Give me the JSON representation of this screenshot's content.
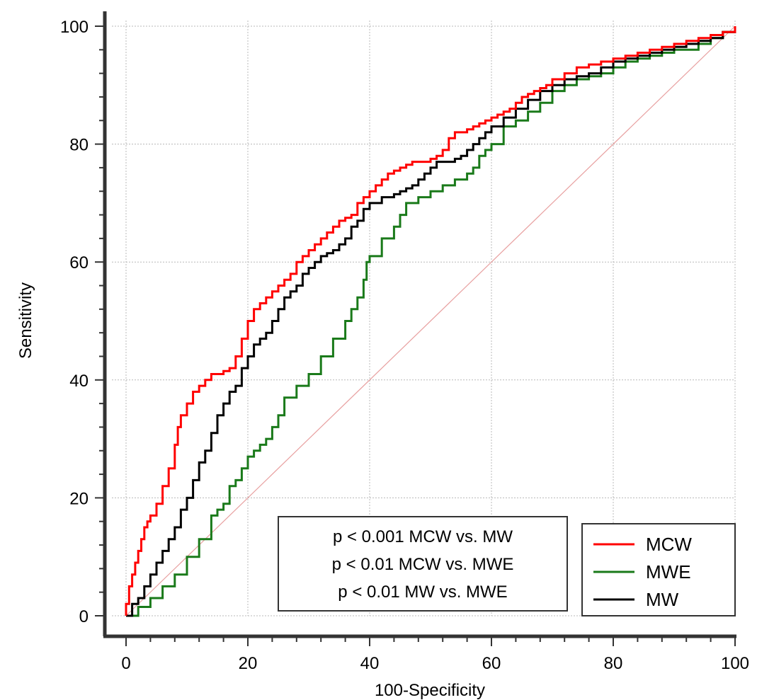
{
  "chart_data": {
    "type": "line",
    "title": "",
    "xlabel": "100-Specificity",
    "ylabel": "Sensitivity",
    "xlim": [
      0,
      100
    ],
    "ylim": [
      0,
      100
    ],
    "xticks": [
      0,
      20,
      40,
      60,
      80,
      100
    ],
    "yticks": [
      0,
      20,
      40,
      60,
      80,
      100
    ],
    "grid": true,
    "legend_position": "bottom-right",
    "annotation": [
      "p < 0.001 MCW vs. MW",
      "p < 0.01 MCW vs. MWE",
      "p < 0.01 MW vs. MWE"
    ],
    "reference_line": {
      "x": [
        0,
        100
      ],
      "y": [
        0,
        100
      ],
      "color": "#e8a0a0"
    },
    "series": [
      {
        "name": "MCW",
        "color": "#ff0000",
        "x": [
          0,
          0,
          0.5,
          1,
          1.5,
          2,
          2.5,
          3,
          3.5,
          4,
          5,
          6,
          7,
          8,
          8.5,
          9,
          10,
          11,
          12,
          13,
          14,
          16,
          17,
          18,
          19,
          20,
          21,
          22,
          23,
          24,
          25,
          26,
          27,
          28,
          29,
          30,
          31,
          32,
          33,
          34,
          35,
          36,
          37,
          38,
          39,
          40,
          41,
          42,
          43,
          44,
          45,
          46,
          47,
          48,
          49,
          50,
          51,
          52,
          53,
          54,
          55,
          56,
          57,
          58,
          59,
          60,
          61,
          62,
          63,
          64,
          65,
          66,
          67,
          68,
          69,
          70,
          72,
          74,
          76,
          78,
          80,
          82,
          84,
          86,
          88,
          90,
          92,
          94,
          96,
          98,
          100
        ],
        "y": [
          0,
          2,
          5,
          7,
          9,
          11,
          13,
          15,
          16,
          17,
          19,
          22,
          25,
          29,
          32,
          34,
          36,
          38,
          39,
          40,
          41,
          41.5,
          42,
          44,
          47,
          50,
          52,
          53,
          54,
          55,
          56,
          57,
          58,
          60,
          61,
          62,
          63,
          64,
          65,
          66,
          67,
          67.5,
          68,
          70,
          71,
          72,
          73,
          74,
          75,
          75.5,
          76,
          76.5,
          77,
          77,
          77,
          77.5,
          78,
          79,
          81,
          82,
          82,
          82.5,
          83,
          83.5,
          84,
          84.5,
          85,
          85.5,
          86,
          87,
          88,
          88.5,
          89,
          89.5,
          90,
          91,
          92,
          93,
          93.5,
          94,
          94.5,
          95,
          95.5,
          96,
          96.5,
          97,
          97.5,
          98,
          98.5,
          99,
          100
        ]
      },
      {
        "name": "MWE",
        "color": "#1a7a1a",
        "x": [
          0,
          2,
          4,
          6,
          8,
          10,
          12,
          14,
          15,
          16,
          17,
          18,
          19,
          20,
          21,
          22,
          23,
          24,
          25,
          26,
          28,
          30,
          32,
          34,
          36,
          37,
          38,
          39,
          39.5,
          40,
          42,
          44,
          45,
          46,
          48,
          50,
          52,
          54,
          56,
          57,
          58,
          59,
          60,
          62,
          64,
          66,
          68,
          70,
          72,
          74,
          76,
          78,
          80,
          82,
          84,
          86,
          88,
          90,
          92,
          94,
          96,
          98,
          100
        ],
        "y": [
          0,
          1.5,
          3,
          5,
          7,
          10,
          13,
          17,
          18,
          19,
          22,
          23,
          25,
          27,
          28,
          29,
          30,
          32,
          34,
          37,
          39,
          41,
          44,
          47,
          50,
          52,
          54,
          57,
          60,
          61,
          64,
          66,
          68,
          70,
          71,
          72,
          73,
          74,
          75,
          76,
          78,
          79,
          80,
          83,
          84,
          85.5,
          87,
          89,
          90,
          91,
          91.5,
          92,
          93,
          94,
          94.5,
          95,
          95.5,
          96,
          96,
          97,
          98,
          99,
          100
        ]
      },
      {
        "name": "MW",
        "color": "#000000",
        "x": [
          0,
          1,
          2,
          3,
          4,
          5,
          6,
          7,
          8,
          9,
          10,
          11,
          12,
          13,
          14,
          15,
          16,
          17,
          18,
          19,
          20,
          21,
          22,
          23,
          24,
          25,
          26,
          27,
          28,
          29,
          30,
          31,
          32,
          33,
          34,
          35,
          36,
          37,
          38,
          39,
          40,
          42,
          44,
          45,
          46,
          47,
          48,
          49,
          50,
          51,
          52,
          53,
          54,
          55,
          56,
          57,
          58,
          59,
          60,
          62,
          64,
          66,
          68,
          70,
          72,
          74,
          76,
          78,
          80,
          82,
          84,
          86,
          88,
          90,
          92,
          94,
          96,
          98,
          100
        ],
        "y": [
          0,
          2,
          3,
          5,
          7,
          9,
          11,
          13,
          15,
          18,
          20,
          23,
          26,
          28,
          31,
          34,
          36,
          38,
          39,
          42,
          44,
          46,
          47,
          48,
          50,
          52,
          54,
          55,
          56,
          58,
          59,
          60,
          61,
          61.5,
          62,
          63,
          64,
          66,
          67,
          69,
          70,
          71,
          71.5,
          72,
          72.5,
          73,
          74,
          75,
          76,
          77,
          77,
          77,
          77.5,
          78,
          79,
          80,
          81,
          82,
          83,
          84.5,
          86,
          87.5,
          89,
          90,
          91,
          91.5,
          92,
          93,
          94,
          94.5,
          95,
          95.5,
          96,
          96.5,
          97,
          97.5,
          98,
          99,
          100
        ]
      }
    ]
  }
}
